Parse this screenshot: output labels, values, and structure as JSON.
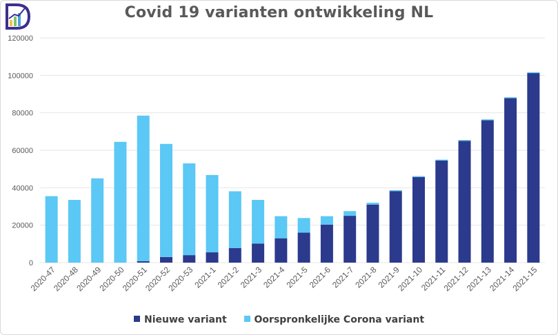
{
  "chart_data": {
    "type": "bar",
    "stacked": true,
    "title": "Covid 19 varianten ontwikkeling NL",
    "categories": [
      "2020-47",
      "2020-48",
      "2020-49",
      "2020-50",
      "2020-51",
      "2020-52",
      "2020-53",
      "2021-1",
      "2021-2",
      "2021-3",
      "2021-4",
      "2021-5",
      "2021-6",
      "2021-7",
      "2021-8",
      "2021-9",
      "2021-10",
      "2021-11",
      "2021-12",
      "2021-13",
      "2021-14",
      "2021-15"
    ],
    "series": [
      {
        "name": "Nieuwe variant",
        "color": "#2b3a8c",
        "values": [
          0,
          0,
          0,
          0,
          800,
          3000,
          4000,
          5500,
          7800,
          10200,
          13000,
          16000,
          20300,
          25000,
          31000,
          38200,
          45700,
          54500,
          65000,
          76000,
          87800,
          101200
        ]
      },
      {
        "name": "Oorspronkelijke Corona variant",
        "color": "#5bc8f5",
        "values": [
          35500,
          33500,
          45000,
          64500,
          77700,
          60400,
          49000,
          41300,
          30300,
          23300,
          11800,
          7800,
          4500,
          2500,
          1000,
          500,
          500,
          500,
          500,
          500,
          500,
          500
        ]
      }
    ],
    "y_ticks": [
      "0",
      "20000",
      "40000",
      "60000",
      "80000",
      "100000",
      "120000"
    ],
    "ylim": [
      0,
      120000
    ],
    "grid": true,
    "legend_position": "bottom"
  }
}
